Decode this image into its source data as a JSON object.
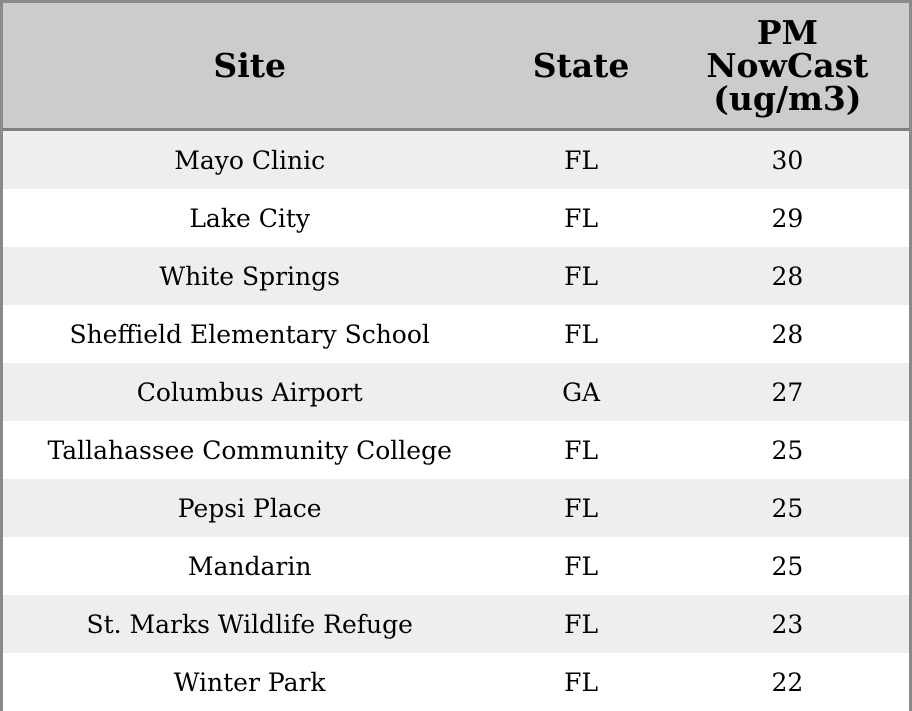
{
  "chart_data": {
    "type": "table",
    "columns": [
      "Site",
      "State",
      "PM\nNowCast\n(ug/m3)"
    ],
    "rows": [
      {
        "site": "Mayo Clinic",
        "state": "FL",
        "pm": "30"
      },
      {
        "site": "Lake City",
        "state": "FL",
        "pm": "29"
      },
      {
        "site": "White Springs",
        "state": "FL",
        "pm": "28"
      },
      {
        "site": "Sheffield Elementary School",
        "state": "FL",
        "pm": "28"
      },
      {
        "site": "Columbus Airport",
        "state": "GA",
        "pm": "27"
      },
      {
        "site": "Tallahassee Community College",
        "state": "FL",
        "pm": "25"
      },
      {
        "site": "Pepsi Place",
        "state": "FL",
        "pm": "25"
      },
      {
        "site": "Mandarin",
        "state": "FL",
        "pm": "25"
      },
      {
        "site": "St. Marks Wildlife Refuge",
        "state": "FL",
        "pm": "23"
      },
      {
        "site": "Winter Park",
        "state": "FL",
        "pm": "22"
      }
    ]
  },
  "colors": {
    "header_background": "#cccccc",
    "row_stripe": "#eeeeee",
    "border": "#8a8a8a"
  }
}
